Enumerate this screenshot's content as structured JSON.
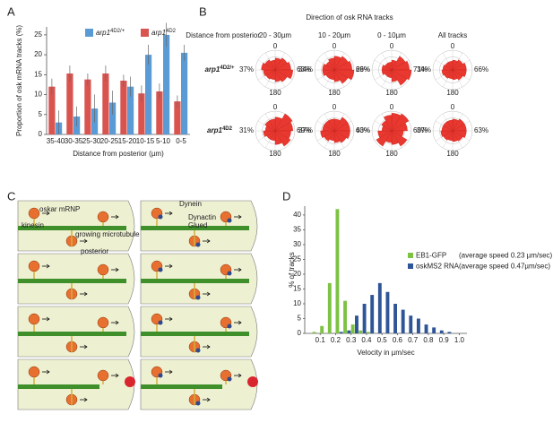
{
  "panels": [
    "A",
    "B",
    "C",
    "D"
  ],
  "chart_data": [
    {
      "type": "bar",
      "ylabel": "Proportion of osk mRNA tracks (%)",
      "xlabel": "Distance from posterior (µm)",
      "categories": [
        "35-40",
        "30-35",
        "25-30",
        "20-25",
        "15-20",
        "10-15",
        "5-10",
        "0-5"
      ],
      "series": [
        {
          "name": "arp1",
          "name_sup": "4D2/+",
          "color": "#5b9bd5",
          "values": [
            3,
            4.5,
            6.5,
            8,
            12,
            20,
            25,
            20.5
          ],
          "errors": [
            3,
            2.5,
            3.5,
            3,
            2.5,
            2.5,
            3,
            2
          ]
        },
        {
          "name": "arp1",
          "name_sup": "4D2",
          "color": "#d9534f",
          "values": [
            12,
            15.3,
            13.8,
            15.3,
            13.5,
            10.3,
            10.8,
            8.3
          ],
          "errors": [
            2,
            2,
            1.5,
            2,
            1.5,
            2,
            2,
            1.5
          ]
        }
      ],
      "ylim": [
        0,
        27
      ],
      "yticks": [
        0,
        5,
        10,
        15,
        20,
        25
      ]
    },
    {
      "type": "histogram",
      "ylabel": "% of tracks",
      "xlabel": "Velocity in µm/sec",
      "bins": [
        0,
        0.05,
        0.1,
        0.15,
        0.2,
        0.25,
        0.3,
        0.35,
        0.4,
        0.45,
        0.5,
        0.55,
        0.6,
        0.65,
        0.7,
        0.75,
        0.8,
        0.85,
        0.9,
        0.95,
        1.0
      ],
      "series": [
        {
          "name": "EB1-GFP",
          "note": "(average speed 0.23 µm/sec)",
          "color": "#7dc243",
          "values": [
            0,
            0.5,
            2.5,
            17,
            42,
            11,
            3,
            1,
            0.5,
            0,
            0,
            0,
            0,
            0,
            0,
            0,
            0,
            0,
            0,
            0
          ]
        },
        {
          "name": "oskMS2 RNA",
          "note": "(average speed 0.47µm/sec)",
          "color": "#2e5597",
          "values": [
            0,
            0,
            0,
            0,
            0.5,
            1,
            6,
            10,
            13,
            17,
            14,
            10,
            8,
            6,
            5,
            3,
            2,
            1,
            0.5,
            0
          ]
        }
      ],
      "xlim": [
        0,
        1.05
      ],
      "ylim": [
        0,
        43
      ],
      "xticks": [
        0.1,
        0.2,
        0.3,
        0.4,
        0.5,
        0.6,
        0.7,
        0.8,
        0.9,
        {
          "value": 1,
          "label": "1.0"
        }
      ],
      "yticks": [
        0,
        5,
        10,
        15,
        20,
        25,
        30,
        35,
        40
      ]
    }
  ],
  "roses": {
    "title": "Direction of osk RNA tracks",
    "row_header": "Distance from posterior",
    "columns": [
      "20 - 30µm",
      "10 - 20µm",
      "0 - 10µm",
      "All tracks"
    ],
    "angle_labels": [
      0,
      180
    ],
    "rows": [
      {
        "name": "arp1",
        "name_sup": "4D2/+",
        "plots": [
          {
            "values": [
              37,
              63
            ],
            "value_labels": [
              "37%",
              "63%"
            ],
            "petals": [
              0.6,
              0.7,
              0.8,
              0.9,
              0.7,
              0.6,
              0.5,
              0.55,
              0.6,
              0.7,
              0.6,
              0.5
            ]
          },
          {
            "values": [
              34,
              66
            ],
            "value_labels": [
              "34%",
              "66%"
            ],
            "petals": [
              0.7,
              0.8,
              0.9,
              1.0,
              0.8,
              0.6,
              0.5,
              0.5,
              0.6,
              0.6,
              0.5,
              0.6
            ]
          },
          {
            "values": [
              29,
              71
            ],
            "value_labels": [
              "29%",
              "71%"
            ],
            "petals": [
              0.5,
              0.8,
              0.9,
              1.0,
              0.9,
              0.6,
              0.4,
              0.4,
              0.5,
              0.5,
              0.4,
              0.4
            ]
          },
          {
            "values": [
              34,
              66
            ],
            "value_labels": [
              "34%",
              "66%"
            ],
            "petals": [
              0.5,
              0.6,
              0.7,
              0.7,
              0.6,
              0.5,
              0.45,
              0.5,
              0.55,
              0.5,
              0.45,
              0.45
            ]
          }
        ]
      },
      {
        "name": "arp1",
        "name_sup": "4D2",
        "plots": [
          {
            "values": [
              31,
              69
            ],
            "value_labels": [
              "31%",
              "69%"
            ],
            "petals": [
              0.7,
              1.0,
              0.9,
              0.8,
              0.9,
              0.7,
              0.5,
              0.5,
              0.6,
              0.5,
              0.6,
              0.6
            ]
          },
          {
            "values": [
              37,
              63
            ],
            "value_labels": [
              "37%",
              "63%"
            ],
            "petals": [
              0.6,
              0.8,
              0.8,
              0.8,
              0.7,
              0.6,
              0.5,
              0.6,
              0.7,
              0.6,
              0.6,
              0.6
            ]
          },
          {
            "values": [
              40,
              60
            ],
            "value_labels": [
              "40%",
              "60%"
            ],
            "petals": [
              0.9,
              1.0,
              0.8,
              0.6,
              0.9,
              0.7,
              0.6,
              0.9,
              0.7,
              0.5,
              0.6,
              0.8
            ]
          },
          {
            "values": [
              37,
              63
            ],
            "value_labels": [
              "37%",
              "63%"
            ],
            "petals": [
              0.6,
              0.7,
              0.7,
              0.7,
              0.6,
              0.55,
              0.5,
              0.55,
              0.6,
              0.55,
              0.55,
              0.55
            ]
          }
        ]
      }
    ]
  },
  "diagram": {
    "labels": [
      "oskar mRNP",
      "kinesin",
      "growing microtubule",
      "posterior",
      "Dynein",
      "Dynactin",
      "Glued"
    ]
  }
}
